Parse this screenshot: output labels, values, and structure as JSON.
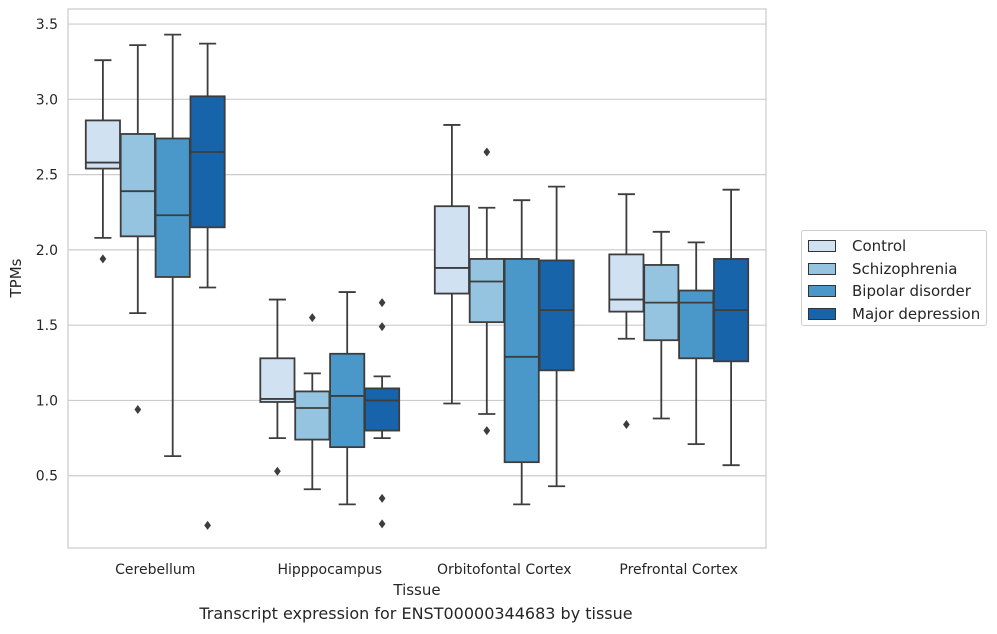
{
  "caption": "Transcript expression for ENST00000344683 by tissue",
  "legend": {
    "items": [
      {
        "label": "Control",
        "color": "#d0e1f2"
      },
      {
        "label": "Schizophrenia",
        "color": "#94c4df"
      },
      {
        "label": "Bipolar disorder",
        "color": "#4a98c9"
      },
      {
        "label": "Major depression",
        "color": "#1764ab"
      }
    ]
  },
  "chart_data": {
    "type": "box",
    "title": "",
    "xlabel": "Tissue",
    "ylabel": "TPMs",
    "ylim": [
      0.02,
      3.6
    ],
    "yticks": [
      0.5,
      1.0,
      1.5,
      2.0,
      2.5,
      3.0,
      3.5
    ],
    "ytick_labels": [
      "0.5",
      "1.0",
      "1.5",
      "2.0",
      "2.5",
      "3.0",
      "3.5"
    ],
    "grid": "horizontal",
    "legend_position": "right",
    "categories": [
      "Cerebellum",
      "Hipppocampus",
      "Orbitofontal Cortex",
      "Prefrontal Cortex"
    ],
    "series": [
      {
        "name": "Control",
        "color": "#d0e1f2",
        "boxes": [
          {
            "whislo": 2.08,
            "q1": 2.54,
            "med": 2.58,
            "q3": 2.86,
            "whishi": 3.26,
            "fliers": [
              1.94
            ]
          },
          {
            "whislo": 0.75,
            "q1": 0.99,
            "med": 1.01,
            "q3": 1.28,
            "whishi": 1.67,
            "fliers": [
              0.53
            ]
          },
          {
            "whislo": 0.98,
            "q1": 1.71,
            "med": 1.88,
            "q3": 2.29,
            "whishi": 2.83,
            "fliers": []
          },
          {
            "whislo": 1.41,
            "q1": 1.59,
            "med": 1.67,
            "q3": 1.97,
            "whishi": 2.37,
            "fliers": [
              0.84
            ]
          }
        ]
      },
      {
        "name": "Schizophrenia",
        "color": "#94c4df",
        "boxes": [
          {
            "whislo": 1.58,
            "q1": 2.09,
            "med": 2.39,
            "q3": 2.77,
            "whishi": 3.36,
            "fliers": [
              0.94
            ]
          },
          {
            "whislo": 0.41,
            "q1": 0.74,
            "med": 0.95,
            "q3": 1.06,
            "whishi": 1.18,
            "fliers": [
              1.55
            ]
          },
          {
            "whislo": 0.91,
            "q1": 1.52,
            "med": 1.79,
            "q3": 1.94,
            "whishi": 2.28,
            "fliers": [
              2.65,
              0.8
            ]
          },
          {
            "whislo": 0.88,
            "q1": 1.4,
            "med": 1.65,
            "q3": 1.9,
            "whishi": 2.12,
            "fliers": []
          }
        ]
      },
      {
        "name": "Bipolar disorder",
        "color": "#4a98c9",
        "boxes": [
          {
            "whislo": 0.63,
            "q1": 1.82,
            "med": 2.23,
            "q3": 2.74,
            "whishi": 3.43,
            "fliers": []
          },
          {
            "whislo": 0.31,
            "q1": 0.69,
            "med": 1.03,
            "q3": 1.31,
            "whishi": 1.72,
            "fliers": []
          },
          {
            "whislo": 0.31,
            "q1": 0.59,
            "med": 1.29,
            "q3": 1.94,
            "whishi": 2.33,
            "fliers": []
          },
          {
            "whislo": 0.71,
            "q1": 1.28,
            "med": 1.65,
            "q3": 1.73,
            "whishi": 2.05,
            "fliers": []
          }
        ]
      },
      {
        "name": "Major depression",
        "color": "#1764ab",
        "boxes": [
          {
            "whislo": 1.75,
            "q1": 2.15,
            "med": 2.65,
            "q3": 3.02,
            "whishi": 3.37,
            "fliers": [
              0.17
            ]
          },
          {
            "whislo": 0.75,
            "q1": 0.8,
            "med": 1.0,
            "q3": 1.08,
            "whishi": 1.16,
            "fliers": [
              1.65,
              1.49,
              0.35,
              0.18
            ]
          },
          {
            "whislo": 0.43,
            "q1": 1.2,
            "med": 1.6,
            "q3": 1.93,
            "whishi": 2.42,
            "fliers": []
          },
          {
            "whislo": 0.57,
            "q1": 1.26,
            "med": 1.6,
            "q3": 1.94,
            "whishi": 2.4,
            "fliers": []
          }
        ]
      }
    ]
  }
}
